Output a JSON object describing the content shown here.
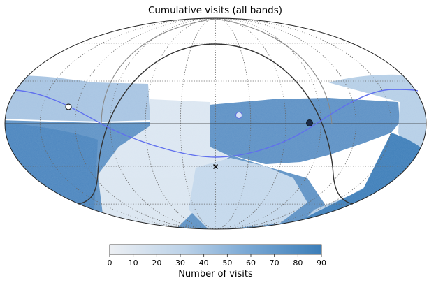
{
  "chart_data": {
    "type": "heatmap",
    "projection": "mollweide",
    "title": "Cumulative visits (all bands)",
    "colorbar": {
      "label": "Number of visits",
      "range": [
        0,
        90
      ],
      "ticks": [
        "0",
        "10",
        "20",
        "30",
        "40",
        "50",
        "60",
        "70",
        "80",
        "90"
      ],
      "cmap": [
        "#eceff3",
        "#3b7db8"
      ]
    },
    "grid": true,
    "curves": {
      "ecliptic_color": "#6070ee",
      "galactic_plane_color": "#333333",
      "horizon_color": "#888888"
    },
    "markers": [
      {
        "name": "open-circle-left",
        "shape": "open circle"
      },
      {
        "name": "moon-marker",
        "shape": "light circle"
      },
      {
        "name": "sun-marker",
        "shape": "filled circle"
      },
      {
        "name": "zenith-marker",
        "shape": "x"
      }
    ]
  }
}
